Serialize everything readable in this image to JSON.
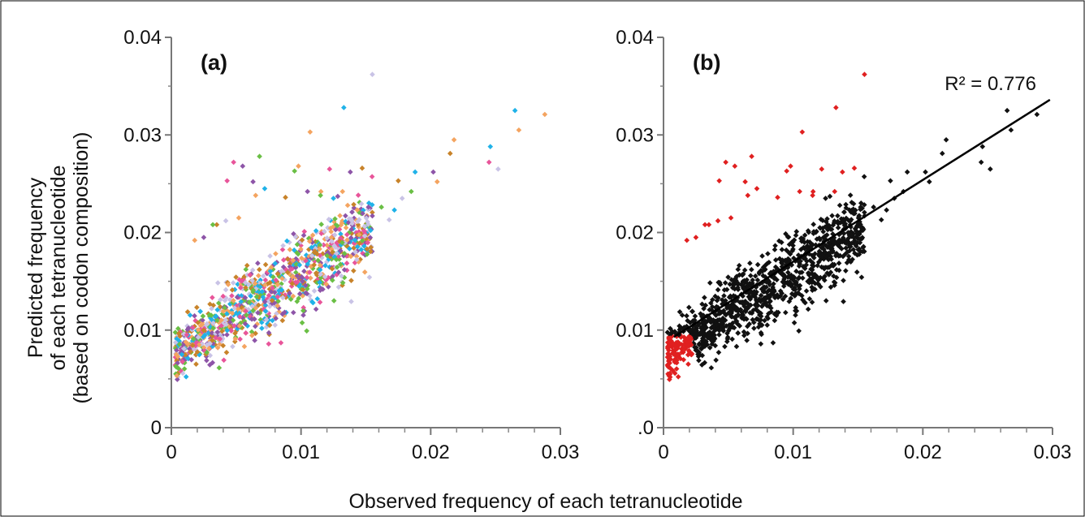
{
  "figure": {
    "xlabel": "Observed frequency of each tetranucleotide",
    "ylabel_lines": [
      "Predicted frequency",
      "of each tetranucleotide",
      "(based on codon composition)"
    ]
  },
  "chart_data": [
    {
      "type": "scatter",
      "panel_label": "(a)",
      "xlim": [
        0,
        0.03
      ],
      "ylim": [
        0,
        0.04
      ],
      "x_ticks": [
        0,
        0.01,
        0.02,
        0.03
      ],
      "x_tick_labels": [
        "0",
        "0.01",
        "0.02",
        "0.03"
      ],
      "y_ticks": [
        0,
        0.01,
        0.02,
        0.03,
        0.04
      ],
      "y_tick_labels": [
        "0",
        "0.01",
        "0.02",
        "0.03",
        "0.04"
      ],
      "grid": false,
      "marker": "diamond",
      "series_colors": [
        "#f4a460",
        "#20b2e8",
        "#e8559a",
        "#6abf45",
        "#8e55a8",
        "#c9c3e6",
        "#c8832a"
      ],
      "main_cloud": {
        "n_points": 1100,
        "x_range": [
          0.0003,
          0.0155
        ],
        "intercept": 0.0072,
        "slope": 0.87,
        "noise_sd": 0.0021
      },
      "tail_points": [
        [
          0.0155,
          0.0362
        ],
        [
          0.0133,
          0.0328
        ],
        [
          0.0107,
          0.0303
        ],
        [
          0.0265,
          0.0325
        ],
        [
          0.0268,
          0.0305
        ],
        [
          0.0288,
          0.0321
        ],
        [
          0.0252,
          0.0265
        ],
        [
          0.0246,
          0.0288
        ],
        [
          0.0245,
          0.0272
        ],
        [
          0.0218,
          0.0295
        ],
        [
          0.0215,
          0.0281
        ],
        [
          0.0202,
          0.0262
        ],
        [
          0.0205,
          0.0252
        ],
        [
          0.0188,
          0.0262
        ],
        [
          0.0185,
          0.0242
        ],
        [
          0.0178,
          0.0235
        ],
        [
          0.0172,
          0.0223
        ],
        [
          0.0162,
          0.0226
        ],
        [
          0.0155,
          0.0217
        ],
        [
          0.0152,
          0.0226
        ],
        [
          0.0168,
          0.0213
        ],
        [
          0.0175,
          0.0253
        ],
        [
          0.0138,
          0.0262
        ],
        [
          0.0122,
          0.0265
        ],
        [
          0.0098,
          0.0268
        ],
        [
          0.0095,
          0.0263
        ],
        [
          0.0063,
          0.0252
        ],
        [
          0.0048,
          0.0272
        ],
        [
          0.0068,
          0.0278
        ],
        [
          0.0055,
          0.0268
        ],
        [
          0.0072,
          0.0245
        ],
        [
          0.0065,
          0.0238
        ],
        [
          0.0043,
          0.0253
        ],
        [
          0.0035,
          0.0208
        ],
        [
          0.0032,
          0.0208
        ],
        [
          0.0042,
          0.0212
        ],
        [
          0.0052,
          0.0215
        ],
        [
          0.0025,
          0.0195
        ],
        [
          0.0018,
          0.0192
        ],
        [
          0.0105,
          0.0242
        ],
        [
          0.0115,
          0.0238
        ],
        [
          0.0125,
          0.0235
        ],
        [
          0.0088,
          0.0236
        ],
        [
          0.0132,
          0.0242
        ]
      ]
    },
    {
      "type": "scatter",
      "panel_label": "(b)",
      "xlim": [
        0,
        0.03
      ],
      "ylim": [
        0,
        0.04
      ],
      "x_ticks": [
        0,
        0.01,
        0.02,
        0.03
      ],
      "x_tick_labels": [
        "0",
        "0.01",
        "0.02",
        "0.03"
      ],
      "y_ticks": [
        0,
        0.01,
        0.02,
        0.03,
        0.04
      ],
      "y_tick_labels": [
        ".0",
        "0.01",
        "0.02",
        "0.03",
        "0.04"
      ],
      "grid": false,
      "marker": "diamond",
      "series_colors": [
        "#111111",
        "#e02020"
      ],
      "annotation": "R² = 0.776",
      "trendline": {
        "x": [
          0.0008,
          0.0298
        ],
        "y": [
          0.0093,
          0.0336
        ]
      },
      "main_cloud": {
        "n_points": 1100,
        "x_range": [
          0.0003,
          0.0155
        ],
        "intercept": 0.0072,
        "slope": 0.87,
        "noise_sd": 0.0021
      },
      "tail_points": [
        [
          0.0155,
          0.0362
        ],
        [
          0.0133,
          0.0328
        ],
        [
          0.0107,
          0.0303
        ],
        [
          0.0265,
          0.0325
        ],
        [
          0.0268,
          0.0305
        ],
        [
          0.0288,
          0.0321
        ],
        [
          0.0252,
          0.0265
        ],
        [
          0.0246,
          0.0288
        ],
        [
          0.0245,
          0.0272
        ],
        [
          0.0218,
          0.0295
        ],
        [
          0.0215,
          0.0281
        ],
        [
          0.0202,
          0.0262
        ],
        [
          0.0205,
          0.0252
        ],
        [
          0.0188,
          0.0262
        ],
        [
          0.0185,
          0.0242
        ],
        [
          0.0178,
          0.0235
        ],
        [
          0.0172,
          0.0223
        ],
        [
          0.0162,
          0.0226
        ],
        [
          0.0155,
          0.0217
        ],
        [
          0.0152,
          0.0226
        ],
        [
          0.0168,
          0.0213
        ],
        [
          0.0175,
          0.0253
        ],
        [
          0.0138,
          0.0262
        ],
        [
          0.0122,
          0.0265
        ],
        [
          0.0098,
          0.0268
        ],
        [
          0.0095,
          0.0263
        ],
        [
          0.0063,
          0.0252
        ],
        [
          0.0048,
          0.0272
        ],
        [
          0.0068,
          0.0278
        ],
        [
          0.0055,
          0.0268
        ],
        [
          0.0072,
          0.0245
        ],
        [
          0.0065,
          0.0238
        ],
        [
          0.0043,
          0.0253
        ],
        [
          0.0035,
          0.0208
        ],
        [
          0.0032,
          0.0208
        ],
        [
          0.0042,
          0.0212
        ],
        [
          0.0052,
          0.0215
        ],
        [
          0.0025,
          0.0195
        ],
        [
          0.0018,
          0.0192
        ],
        [
          0.0105,
          0.0242
        ],
        [
          0.0115,
          0.0238
        ],
        [
          0.0125,
          0.0235
        ],
        [
          0.0088,
          0.0236
        ],
        [
          0.0132,
          0.0242
        ]
      ]
    }
  ]
}
